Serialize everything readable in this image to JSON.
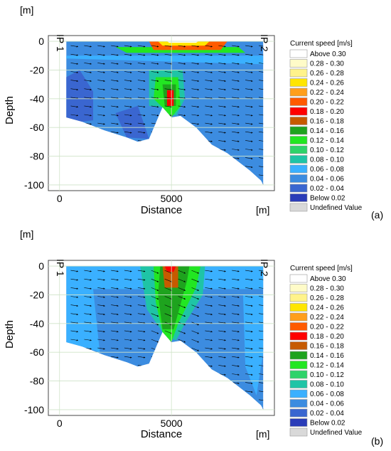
{
  "legend": {
    "title": "Current speed [m/s]",
    "entries": [
      {
        "label": "Above 0.30",
        "color": "#ffffff"
      },
      {
        "label": "0.28 - 0.30",
        "color": "#fffbc8"
      },
      {
        "label": "0.26 - 0.28",
        "color": "#fff38a"
      },
      {
        "label": "0.24 - 0.26",
        "color": "#ffe600"
      },
      {
        "label": "0.22 - 0.24",
        "color": "#ff9f1c"
      },
      {
        "label": "0.20 - 0.22",
        "color": "#ff5a00"
      },
      {
        "label": "0.18 - 0.20",
        "color": "#ff0000"
      },
      {
        "label": "0.16 - 0.18",
        "color": "#c65a00"
      },
      {
        "label": "0.14 - 0.16",
        "color": "#1ea31e"
      },
      {
        "label": "0.12 - 0.14",
        "color": "#22e622"
      },
      {
        "label": "0.10 - 0.12",
        "color": "#2ed36a"
      },
      {
        "label": "0.08 - 0.10",
        "color": "#1fc4a6"
      },
      {
        "label": "0.06 - 0.08",
        "color": "#3ab0ff"
      },
      {
        "label": "0.04 - 0.06",
        "color": "#3c8ce0"
      },
      {
        "label": "0.02 - 0.04",
        "color": "#3a66d0"
      },
      {
        "label": "Below 0.02",
        "color": "#2a3cb8"
      },
      {
        "label": "Undefined Value",
        "color": "#d9d9d9"
      }
    ]
  },
  "chart_data": [
    {
      "type": "heatmap",
      "panel_label": "(a)",
      "y_unit": "[m]",
      "x_unit": "[m]",
      "xlabel": "Distance",
      "ylabel": "Depth",
      "xlim": [
        -500,
        9600
      ],
      "ylim": [
        -104,
        4
      ],
      "xticks": [
        0,
        5000
      ],
      "yticks": [
        0,
        -20,
        -40,
        -60,
        -80,
        -100
      ],
      "grid": true,
      "section_labels": [
        "IP 1",
        "IP 2"
      ],
      "bottom_profile": [
        [
          300,
          -53
        ],
        [
          1000,
          -56
        ],
        [
          2000,
          -62
        ],
        [
          3000,
          -67
        ],
        [
          3500,
          -70
        ],
        [
          4000,
          -68
        ],
        [
          4600,
          -46
        ],
        [
          5000,
          -53
        ],
        [
          5400,
          -52
        ],
        [
          6100,
          -60
        ],
        [
          6800,
          -72
        ],
        [
          7500,
          -78
        ],
        [
          8500,
          -90
        ],
        [
          9000,
          -97
        ],
        [
          9100,
          -100
        ]
      ],
      "background_speed_range": "0.04 - 0.06",
      "speed_zones": [
        {
          "speed_range": "0.02 - 0.04",
          "polygon": [
            [
              300,
              -25
            ],
            [
              900,
              -20
            ],
            [
              1500,
              -35
            ],
            [
              1500,
              -55
            ],
            [
              1000,
              -56
            ],
            [
              300,
              -53
            ]
          ]
        },
        {
          "speed_range": "0.02 - 0.04",
          "polygon": [
            [
              2500,
              -50
            ],
            [
              3500,
              -45
            ],
            [
              4000,
              -68
            ],
            [
              3000,
              -67
            ]
          ]
        },
        {
          "speed_range": "0.06 - 0.08",
          "polygon": [
            [
              300,
              -10
            ],
            [
              9100,
              -10
            ],
            [
              9100,
              -16
            ],
            [
              300,
              -12
            ]
          ]
        },
        {
          "speed_range": "0.08 - 0.10",
          "polygon": [
            [
              4000,
              -20
            ],
            [
              5500,
              -20
            ],
            [
              5600,
              -40
            ],
            [
              5200,
              -52
            ],
            [
              4600,
              -46
            ],
            [
              4000,
              -45
            ]
          ]
        },
        {
          "speed_range": "0.12 - 0.14",
          "polygon": [
            [
              2500,
              -4
            ],
            [
              8000,
              -4
            ],
            [
              8300,
              -8
            ],
            [
              3000,
              -8
            ]
          ]
        },
        {
          "speed_range": "0.12 - 0.14",
          "polygon": [
            [
              4300,
              -25
            ],
            [
              5300,
              -25
            ],
            [
              5400,
              -45
            ],
            [
              5000,
              -53
            ],
            [
              4600,
              -46
            ],
            [
              4200,
              -40
            ]
          ]
        },
        {
          "speed_range": "0.14 - 0.16",
          "polygon": [
            [
              4600,
              -30
            ],
            [
              5200,
              -30
            ],
            [
              5200,
              -45
            ],
            [
              4700,
              -45
            ]
          ]
        },
        {
          "speed_range": "0.18 - 0.20",
          "polygon": [
            [
              4800,
              -34
            ],
            [
              5100,
              -34
            ],
            [
              5100,
              -45
            ],
            [
              4800,
              -45
            ]
          ]
        },
        {
          "speed_range": "0.20 - 0.22",
          "polygon": [
            [
              4000,
              0
            ],
            [
              7500,
              0
            ],
            [
              7200,
              -6
            ],
            [
              4200,
              -6
            ]
          ]
        },
        {
          "speed_range": "0.24 - 0.26",
          "polygon": [
            [
              4400,
              0
            ],
            [
              6700,
              0
            ],
            [
              6500,
              -3
            ],
            [
              4600,
              -3
            ]
          ]
        },
        {
          "speed_range": "Above 0.30",
          "polygon": [
            [
              4800,
              0
            ],
            [
              6200,
              0
            ],
            [
              6100,
              -1
            ],
            [
              4900,
              -1
            ]
          ]
        }
      ]
    },
    {
      "type": "heatmap",
      "panel_label": "(b)",
      "y_unit": "[m]",
      "x_unit": "[m]",
      "xlabel": "Distance",
      "ylabel": "Depth",
      "xlim": [
        -500,
        9600
      ],
      "ylim": [
        -104,
        4
      ],
      "xticks": [
        0,
        5000
      ],
      "yticks": [
        0,
        -20,
        -40,
        -60,
        -80,
        -100
      ],
      "grid": true,
      "section_labels": [
        "IP 1",
        "IP 2"
      ],
      "bottom_profile": [
        [
          300,
          -53
        ],
        [
          1000,
          -56
        ],
        [
          2000,
          -62
        ],
        [
          3000,
          -67
        ],
        [
          3500,
          -70
        ],
        [
          4000,
          -68
        ],
        [
          4600,
          -46
        ],
        [
          5000,
          -53
        ],
        [
          5400,
          -52
        ],
        [
          6100,
          -60
        ],
        [
          6800,
          -72
        ],
        [
          7500,
          -78
        ],
        [
          8500,
          -90
        ],
        [
          9000,
          -97
        ],
        [
          9100,
          -100
        ]
      ],
      "background_speed_range": "0.04 - 0.06",
      "speed_zones": [
        {
          "speed_range": "0.06 - 0.08",
          "polygon": [
            [
              300,
              0
            ],
            [
              9100,
              0
            ],
            [
              9100,
              -16
            ],
            [
              300,
              -16
            ]
          ]
        },
        {
          "speed_range": "0.06 - 0.08",
          "polygon": [
            [
              300,
              -16
            ],
            [
              1500,
              -16
            ],
            [
              1800,
              -60
            ],
            [
              1000,
              -56
            ],
            [
              300,
              -53
            ]
          ]
        },
        {
          "speed_range": "0.06 - 0.08",
          "polygon": [
            [
              8200,
              -20
            ],
            [
              9100,
              -20
            ],
            [
              9100,
              -60
            ],
            [
              8800,
              -90
            ],
            [
              8300,
              -70
            ]
          ]
        },
        {
          "speed_range": "0.08 - 0.10",
          "polygon": [
            [
              3600,
              0
            ],
            [
              6500,
              0
            ],
            [
              6400,
              -20
            ],
            [
              5600,
              -40
            ],
            [
              5200,
              -52
            ],
            [
              4600,
              -46
            ],
            [
              3900,
              -30
            ]
          ]
        },
        {
          "speed_range": "0.12 - 0.14",
          "polygon": [
            [
              4200,
              0
            ],
            [
              6300,
              0
            ],
            [
              6100,
              -15
            ],
            [
              5300,
              -40
            ],
            [
              5000,
              -53
            ],
            [
              4600,
              -46
            ],
            [
              4300,
              -25
            ]
          ]
        },
        {
          "speed_range": "0.14 - 0.16",
          "polygon": [
            [
              4500,
              0
            ],
            [
              5800,
              0
            ],
            [
              5700,
              -10
            ],
            [
              5100,
              -44
            ],
            [
              4600,
              -44
            ],
            [
              4400,
              -20
            ]
          ]
        },
        {
          "speed_range": "0.16 - 0.18",
          "polygon": [
            [
              4600,
              0
            ],
            [
              5300,
              0
            ],
            [
              5300,
              -15
            ],
            [
              4700,
              -15
            ]
          ]
        },
        {
          "speed_range": "0.18 - 0.20",
          "polygon": [
            [
              4700,
              0
            ],
            [
              5200,
              0
            ],
            [
              5100,
              -4
            ],
            [
              4800,
              -4
            ]
          ]
        }
      ]
    }
  ]
}
